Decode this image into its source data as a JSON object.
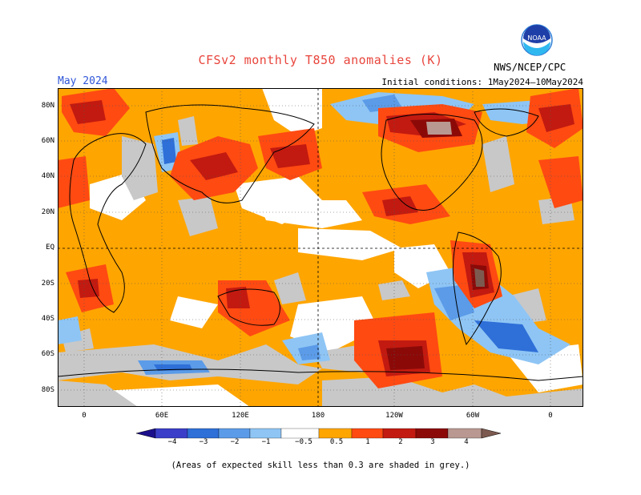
{
  "title": "CFSv2 monthly T850 anomalies (K)",
  "period": "May 2024",
  "initial_conditions": "Initial conditions: 1May2024–10May2024",
  "agency": "NWS/NCEP/CPC",
  "logo_text": "NOAA",
  "lat_labels": [
    "80N",
    "60N",
    "40N",
    "20N",
    "EQ",
    "20S",
    "40S",
    "60S",
    "80S"
  ],
  "lon_labels": [
    "0",
    "60E",
    "120E",
    "180",
    "120W",
    "60W",
    "0"
  ],
  "colorbar": {
    "labels": [
      "−4",
      "−3",
      "−2",
      "−1",
      "−0.5",
      "0.5",
      "1",
      "2",
      "3",
      "4"
    ],
    "colors": [
      "#1c0f8c",
      "#3a3ec8",
      "#2e6fd8",
      "#5b9be8",
      "#8ec5f5",
      "#ffffff",
      "#ffa500",
      "#ff4a12",
      "#c21a10",
      "#8b0a08",
      "#b89890",
      "#7d5a50"
    ]
  },
  "colors": {
    "skill_grey": "#c8c8c8",
    "title": "#e8453c",
    "period": "#2f55d8"
  },
  "note": "(Areas of expected skill less than 0.3 are shaded in grey.)"
}
